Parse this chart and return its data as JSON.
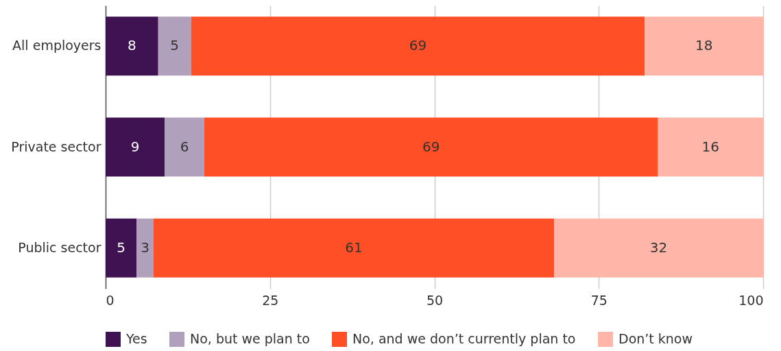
{
  "chart_data": {
    "type": "bar",
    "orientation": "horizontal",
    "stacked": true,
    "categories": [
      "All employers",
      "Private sector",
      "Public sector"
    ],
    "series": [
      {
        "name": "Yes",
        "color": "#3f1351",
        "values": [
          8,
          9,
          4.7
        ],
        "value_labels": [
          "8",
          "9",
          "5"
        ]
      },
      {
        "name": "No, but we plan to",
        "color": "#b0a0bb",
        "values": [
          5,
          6,
          2.6
        ],
        "value_labels": [
          "5",
          "6",
          "3"
        ]
      },
      {
        "name": "No, and we don’t currently plan to",
        "color": "#ff4f26",
        "values": [
          69,
          69,
          60.9
        ],
        "value_labels": [
          "69",
          "69",
          "61"
        ]
      },
      {
        "name": "Don’t know",
        "color": "#ffb6a8",
        "values": [
          18,
          16,
          31.8
        ],
        "value_labels": [
          "18",
          "16",
          "32"
        ]
      }
    ],
    "xlim": [
      0,
      100
    ],
    "xticks": [
      0,
      25,
      50,
      75,
      100
    ],
    "grid": "x",
    "legend": "bottom"
  }
}
